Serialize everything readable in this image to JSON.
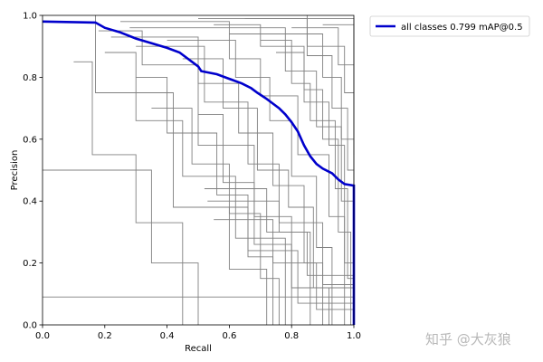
{
  "chart_data": {
    "type": "line",
    "xlabel": "Recall",
    "ylabel": "Precision",
    "xlim": [
      0.0,
      1.0
    ],
    "ylim": [
      0.0,
      1.0
    ],
    "xticks": [
      "0.0",
      "0.2",
      "0.4",
      "0.6",
      "0.8",
      "1.0"
    ],
    "yticks": [
      "0.0",
      "0.2",
      "0.4",
      "0.6",
      "0.8",
      "1.0"
    ],
    "grid": false,
    "legend": {
      "placement": "outside-top-right",
      "entries": [
        "all classes 0.799 mAP@0.5"
      ]
    },
    "series_color": "#0000cc",
    "class_color": "#808080",
    "series": [
      {
        "name": "all classes 0.799 mAP@0.5",
        "points": [
          [
            0.0,
            0.98
          ],
          [
            0.17,
            0.977
          ],
          [
            0.2,
            0.96
          ],
          [
            0.25,
            0.945
          ],
          [
            0.3,
            0.925
          ],
          [
            0.35,
            0.91
          ],
          [
            0.4,
            0.895
          ],
          [
            0.44,
            0.88
          ],
          [
            0.5,
            0.835
          ],
          [
            0.51,
            0.82
          ],
          [
            0.56,
            0.81
          ],
          [
            0.6,
            0.795
          ],
          [
            0.64,
            0.78
          ],
          [
            0.67,
            0.765
          ],
          [
            0.69,
            0.75
          ],
          [
            0.72,
            0.73
          ],
          [
            0.74,
            0.715
          ],
          [
            0.76,
            0.7
          ],
          [
            0.78,
            0.68
          ],
          [
            0.8,
            0.655
          ],
          [
            0.82,
            0.625
          ],
          [
            0.84,
            0.58
          ],
          [
            0.86,
            0.545
          ],
          [
            0.88,
            0.52
          ],
          [
            0.9,
            0.505
          ],
          [
            0.93,
            0.49
          ],
          [
            0.95,
            0.47
          ],
          [
            0.97,
            0.455
          ],
          [
            1.0,
            0.45
          ],
          [
            1.0,
            0.0
          ]
        ]
      }
    ],
    "class_curves": [
      [
        [
          0,
          0.5
        ],
        [
          0.35,
          0.5
        ],
        [
          0.35,
          0.2
        ],
        [
          0.5,
          0.2
        ],
        [
          0.5,
          0.0
        ]
      ],
      [
        [
          0,
          0.09
        ],
        [
          1.0,
          0.09
        ]
      ],
      [
        [
          0.17,
          1.0
        ],
        [
          0.17,
          0.75
        ],
        [
          0.42,
          0.75
        ],
        [
          0.42,
          0.38
        ],
        [
          0.6,
          0.38
        ],
        [
          0.6,
          0.18
        ],
        [
          0.72,
          0.18
        ],
        [
          0.72,
          0.0
        ]
      ],
      [
        [
          0.18,
          0.95
        ],
        [
          0.32,
          0.95
        ],
        [
          0.32,
          0.84
        ],
        [
          0.5,
          0.84
        ],
        [
          0.5,
          0.58
        ],
        [
          0.68,
          0.58
        ],
        [
          0.68,
          0.35
        ],
        [
          0.8,
          0.35
        ],
        [
          0.8,
          0.0
        ]
      ],
      [
        [
          0.2,
          0.88
        ],
        [
          0.3,
          0.88
        ],
        [
          0.3,
          0.66
        ],
        [
          0.45,
          0.66
        ],
        [
          0.45,
          0.48
        ],
        [
          0.62,
          0.48
        ],
        [
          0.62,
          0.28
        ],
        [
          0.78,
          0.28
        ],
        [
          0.78,
          0.0
        ]
      ],
      [
        [
          0.22,
          0.93
        ],
        [
          0.5,
          0.93
        ],
        [
          0.5,
          0.78
        ],
        [
          0.63,
          0.78
        ],
        [
          0.63,
          0.62
        ],
        [
          0.74,
          0.62
        ],
        [
          0.74,
          0.45
        ],
        [
          0.84,
          0.45
        ],
        [
          0.84,
          0.2
        ],
        [
          0.9,
          0.2
        ],
        [
          0.9,
          0.0
        ]
      ],
      [
        [
          0.25,
          0.98
        ],
        [
          0.6,
          0.98
        ],
        [
          0.6,
          0.86
        ],
        [
          0.7,
          0.86
        ],
        [
          0.7,
          0.74
        ],
        [
          0.82,
          0.74
        ],
        [
          0.82,
          0.55
        ],
        [
          0.92,
          0.55
        ],
        [
          0.92,
          0.35
        ],
        [
          0.97,
          0.35
        ],
        [
          0.97,
          0.0
        ]
      ],
      [
        [
          0.28,
          0.96
        ],
        [
          0.78,
          0.96
        ],
        [
          0.78,
          0.82
        ],
        [
          0.88,
          0.82
        ],
        [
          0.88,
          0.64
        ],
        [
          0.96,
          0.64
        ],
        [
          0.96,
          0.4
        ],
        [
          1.0,
          0.4
        ],
        [
          1.0,
          0.0
        ]
      ],
      [
        [
          0.3,
          0.9
        ],
        [
          0.52,
          0.9
        ],
        [
          0.52,
          0.72
        ],
        [
          0.66,
          0.72
        ],
        [
          0.66,
          0.52
        ],
        [
          0.76,
          0.52
        ],
        [
          0.76,
          0.3
        ],
        [
          0.86,
          0.3
        ],
        [
          0.86,
          0.0
        ]
      ],
      [
        [
          0.3,
          0.8
        ],
        [
          0.4,
          0.8
        ],
        [
          0.4,
          0.62
        ],
        [
          0.56,
          0.62
        ],
        [
          0.56,
          0.42
        ],
        [
          0.66,
          0.42
        ],
        [
          0.66,
          0.22
        ],
        [
          0.74,
          0.22
        ],
        [
          0.74,
          0.0
        ]
      ],
      [
        [
          0.1,
          0.85
        ],
        [
          0.16,
          0.85
        ],
        [
          0.16,
          0.55
        ],
        [
          0.3,
          0.55
        ],
        [
          0.3,
          0.33
        ],
        [
          0.45,
          0.33
        ],
        [
          0.45,
          0.0
        ]
      ],
      [
        [
          0.5,
          0.99
        ],
        [
          0.85,
          0.99
        ],
        [
          0.85,
          0.87
        ],
        [
          0.93,
          0.87
        ],
        [
          0.93,
          0.7
        ],
        [
          0.98,
          0.7
        ],
        [
          0.98,
          0.5
        ],
        [
          1.0,
          0.5
        ],
        [
          1.0,
          0.0
        ]
      ],
      [
        [
          0.55,
          0.97
        ],
        [
          0.7,
          0.97
        ],
        [
          0.7,
          0.9
        ],
        [
          0.84,
          0.9
        ],
        [
          0.84,
          0.76
        ],
        [
          0.9,
          0.76
        ],
        [
          0.9,
          0.6
        ],
        [
          0.95,
          0.6
        ],
        [
          0.95,
          0.3
        ],
        [
          0.99,
          0.3
        ],
        [
          0.99,
          0.0
        ]
      ],
      [
        [
          0.4,
          0.92
        ],
        [
          0.62,
          0.92
        ],
        [
          0.62,
          0.8
        ],
        [
          0.73,
          0.8
        ],
        [
          0.73,
          0.66
        ],
        [
          0.8,
          0.66
        ],
        [
          0.8,
          0.48
        ],
        [
          0.88,
          0.48
        ],
        [
          0.88,
          0.25
        ],
        [
          0.93,
          0.25
        ],
        [
          0.93,
          0.0
        ]
      ],
      [
        [
          0.45,
          0.86
        ],
        [
          0.58,
          0.86
        ],
        [
          0.58,
          0.7
        ],
        [
          0.69,
          0.7
        ],
        [
          0.69,
          0.5
        ],
        [
          0.79,
          0.5
        ],
        [
          0.79,
          0.38
        ],
        [
          0.87,
          0.38
        ],
        [
          0.87,
          0.12
        ],
        [
          0.92,
          0.12
        ],
        [
          0.92,
          0.0
        ]
      ],
      [
        [
          0.6,
          0.94
        ],
        [
          0.9,
          0.94
        ],
        [
          0.9,
          0.8
        ],
        [
          0.96,
          0.8
        ],
        [
          0.96,
          0.6
        ],
        [
          1.0,
          0.6
        ],
        [
          1.0,
          0.1
        ]
      ],
      [
        [
          0.65,
          0.99
        ],
        [
          1.0,
          0.99
        ],
        [
          1.0,
          0.7
        ]
      ],
      [
        [
          0.35,
          0.7
        ],
        [
          0.48,
          0.7
        ],
        [
          0.48,
          0.52
        ],
        [
          0.6,
          0.52
        ],
        [
          0.6,
          0.36
        ],
        [
          0.7,
          0.36
        ],
        [
          0.7,
          0.15
        ],
        [
          0.76,
          0.15
        ],
        [
          0.76,
          0.0
        ]
      ],
      [
        [
          0.7,
          0.92
        ],
        [
          0.8,
          0.92
        ],
        [
          0.8,
          0.78
        ],
        [
          0.86,
          0.78
        ],
        [
          0.86,
          0.66
        ],
        [
          0.94,
          0.66
        ],
        [
          0.94,
          0.44
        ],
        [
          0.98,
          0.44
        ],
        [
          0.98,
          0.15
        ],
        [
          1.0,
          0.15
        ]
      ],
      [
        [
          0.75,
          0.88
        ],
        [
          0.84,
          0.88
        ],
        [
          0.84,
          0.72
        ],
        [
          0.92,
          0.72
        ],
        [
          0.92,
          0.58
        ],
        [
          0.97,
          0.58
        ],
        [
          0.97,
          0.2
        ],
        [
          1.0,
          0.2
        ]
      ],
      [
        [
          0.5,
          0.68
        ],
        [
          0.58,
          0.68
        ],
        [
          0.58,
          0.46
        ],
        [
          0.68,
          0.46
        ],
        [
          0.68,
          0.26
        ],
        [
          0.8,
          0.26
        ],
        [
          0.8,
          0.12
        ],
        [
          1.0,
          0.12
        ]
      ],
      [
        [
          0.52,
          0.44
        ],
        [
          0.72,
          0.44
        ],
        [
          0.72,
          0.3
        ],
        [
          0.85,
          0.3
        ],
        [
          0.85,
          0.16
        ],
        [
          1.0,
          0.16
        ]
      ],
      [
        [
          0.5,
          0.38
        ],
        [
          0.66,
          0.38
        ],
        [
          0.66,
          0.24
        ],
        [
          0.82,
          0.24
        ],
        [
          0.82,
          0.07
        ],
        [
          1.0,
          0.07
        ]
      ],
      [
        [
          0.53,
          0.4
        ],
        [
          0.76,
          0.4
        ],
        [
          0.76,
          0.33
        ],
        [
          0.9,
          0.33
        ],
        [
          0.9,
          0.13
        ],
        [
          1.0,
          0.13
        ]
      ],
      [
        [
          0.55,
          0.34
        ],
        [
          0.74,
          0.34
        ],
        [
          0.74,
          0.2
        ],
        [
          0.88,
          0.2
        ],
        [
          0.88,
          0.05
        ],
        [
          1.0,
          0.05
        ]
      ],
      [
        [
          0.8,
          0.96
        ],
        [
          0.95,
          0.96
        ],
        [
          0.95,
          0.84
        ],
        [
          1.0,
          0.84
        ],
        [
          1.0,
          0.55
        ]
      ],
      [
        [
          0.85,
          1.0
        ],
        [
          0.85,
          0.9
        ],
        [
          0.97,
          0.9
        ],
        [
          0.97,
          0.75
        ],
        [
          1.0,
          0.75
        ]
      ],
      [
        [
          0.9,
          0.97
        ],
        [
          1.0,
          0.97
        ],
        [
          1.0,
          0.6
        ]
      ]
    ]
  },
  "watermark": "知乎 @大灰狼"
}
